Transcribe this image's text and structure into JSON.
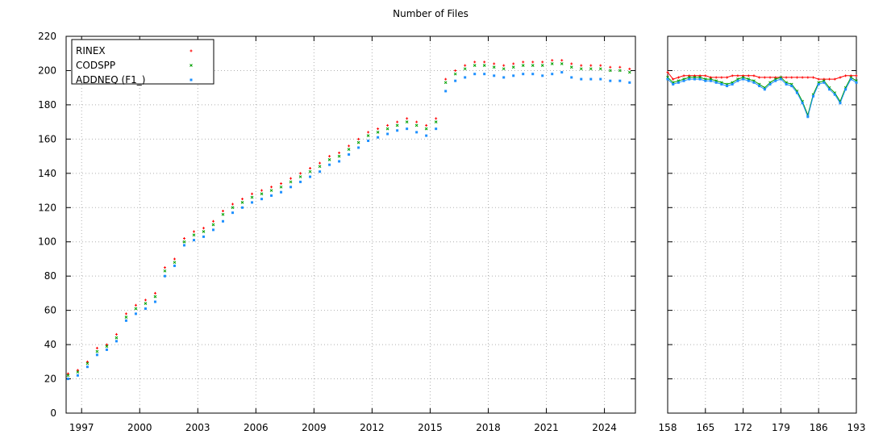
{
  "chart_data": [
    {
      "type": "scatter",
      "title": "Number of Files",
      "xlabel": "",
      "ylabel": "",
      "x_unit": "year",
      "xlim": [
        1996.2,
        2025.6
      ],
      "ylim": [
        0,
        220
      ],
      "x_ticks": [
        1997,
        2000,
        2003,
        2006,
        2009,
        2012,
        2015,
        2018,
        2021,
        2024
      ],
      "y_ticks": [
        0,
        20,
        40,
        60,
        80,
        100,
        120,
        140,
        160,
        180,
        200,
        220
      ],
      "grid": true,
      "legend": {
        "position": "top-left",
        "entries": [
          "RINEX",
          "CODSPP",
          "ADDNEQ (F1_)"
        ]
      },
      "x": [
        1996.3,
        1996.8,
        1997.3,
        1997.8,
        1998.3,
        1998.8,
        1999.3,
        1999.8,
        2000.3,
        2000.8,
        2001.3,
        2001.8,
        2002.3,
        2002.8,
        2003.3,
        2003.8,
        2004.3,
        2004.8,
        2005.3,
        2005.8,
        2006.3,
        2006.8,
        2007.3,
        2007.8,
        2008.3,
        2008.8,
        2009.3,
        2009.8,
        2010.3,
        2010.8,
        2011.3,
        2011.8,
        2012.3,
        2012.8,
        2013.3,
        2013.8,
        2014.3,
        2014.8,
        2015.3,
        2015.8,
        2016.3,
        2016.8,
        2017.3,
        2017.8,
        2018.3,
        2018.8,
        2019.3,
        2019.8,
        2020.3,
        2020.8,
        2021.3,
        2021.8,
        2022.3,
        2022.8,
        2023.3,
        2023.8,
        2024.3,
        2024.8,
        2025.3
      ],
      "series": [
        {
          "name": "RINEX",
          "color": "#ff0000",
          "values": [
            23,
            25,
            30,
            38,
            40,
            46,
            58,
            63,
            66,
            70,
            85,
            90,
            102,
            106,
            108,
            112,
            118,
            122,
            125,
            128,
            130,
            132,
            134,
            137,
            140,
            143,
            146,
            150,
            152,
            156,
            160,
            164,
            166,
            168,
            170,
            172,
            170,
            168,
            172,
            195,
            200,
            203,
            205,
            205,
            204,
            203,
            204,
            205,
            205,
            205,
            206,
            206,
            204,
            203,
            203,
            203,
            202,
            202,
            201
          ]
        },
        {
          "name": "CODSPP",
          "color": "#00a000",
          "values": [
            22,
            24,
            29,
            36,
            39,
            44,
            56,
            61,
            64,
            68,
            83,
            88,
            100,
            104,
            106,
            110,
            116,
            120,
            123,
            126,
            128,
            130,
            132,
            135,
            138,
            141,
            144,
            148,
            150,
            154,
            158,
            162,
            164,
            166,
            168,
            170,
            168,
            166,
            170,
            193,
            198,
            201,
            203,
            203,
            202,
            201,
            202,
            203,
            203,
            203,
            204,
            204,
            202,
            201,
            201,
            201,
            200,
            200,
            199
          ]
        },
        {
          "name": "ADDNEQ (F1_)",
          "color": "#1e90ff",
          "values": [
            20,
            22,
            27,
            34,
            37,
            42,
            54,
            58,
            61,
            65,
            80,
            86,
            98,
            101,
            103,
            107,
            112,
            117,
            120,
            123,
            125,
            127,
            129,
            132,
            135,
            138,
            141,
            145,
            147,
            151,
            155,
            159,
            161,
            163,
            165,
            166,
            164,
            162,
            166,
            188,
            194,
            196,
            198,
            198,
            197,
            196,
            197,
            198,
            198,
            197,
            198,
            199,
            196,
            195,
            195,
            195,
            194,
            194,
            193
          ]
        }
      ]
    },
    {
      "type": "line",
      "title": "",
      "xlabel": "",
      "ylabel": "",
      "xlim": [
        158,
        193
      ],
      "ylim": [
        0,
        220
      ],
      "x_ticks": [
        158,
        165,
        172,
        179,
        186,
        193
      ],
      "y_ticks": [
        0,
        20,
        40,
        60,
        80,
        100,
        120,
        140,
        160,
        180,
        200,
        220
      ],
      "grid": true,
      "x": [
        158,
        159,
        160,
        161,
        162,
        163,
        164,
        165,
        166,
        167,
        168,
        169,
        170,
        171,
        172,
        173,
        174,
        175,
        176,
        177,
        178,
        179,
        180,
        181,
        182,
        183,
        184,
        185,
        186,
        187,
        188,
        189,
        190,
        191,
        192,
        193
      ],
      "series": [
        {
          "name": "RINEX",
          "color": "#ff0000",
          "values": [
            199,
            195,
            196,
            197,
            197,
            197,
            197,
            197,
            196,
            196,
            196,
            196,
            197,
            197,
            197,
            197,
            197,
            196,
            196,
            196,
            196,
            196,
            196,
            196,
            196,
            196,
            196,
            196,
            195,
            195,
            195,
            195,
            196,
            197,
            197,
            197
          ]
        },
        {
          "name": "CODSPP",
          "color": "#00a000",
          "values": [
            196,
            193,
            194,
            195,
            196,
            196,
            196,
            195,
            195,
            194,
            193,
            192,
            193,
            195,
            196,
            195,
            194,
            192,
            190,
            193,
            195,
            196,
            193,
            192,
            188,
            182,
            174,
            186,
            193,
            194,
            190,
            187,
            182,
            190,
            196,
            194
          ]
        },
        {
          "name": "ADDNEQ (F1_)",
          "color": "#1e90ff",
          "values": [
            195,
            192,
            193,
            194,
            195,
            195,
            195,
            194,
            194,
            193,
            192,
            191,
            192,
            194,
            195,
            194,
            193,
            191,
            189,
            192,
            194,
            195,
            192,
            191,
            187,
            181,
            173,
            185,
            192,
            193,
            189,
            186,
            181,
            189,
            195,
            193
          ]
        }
      ]
    }
  ]
}
